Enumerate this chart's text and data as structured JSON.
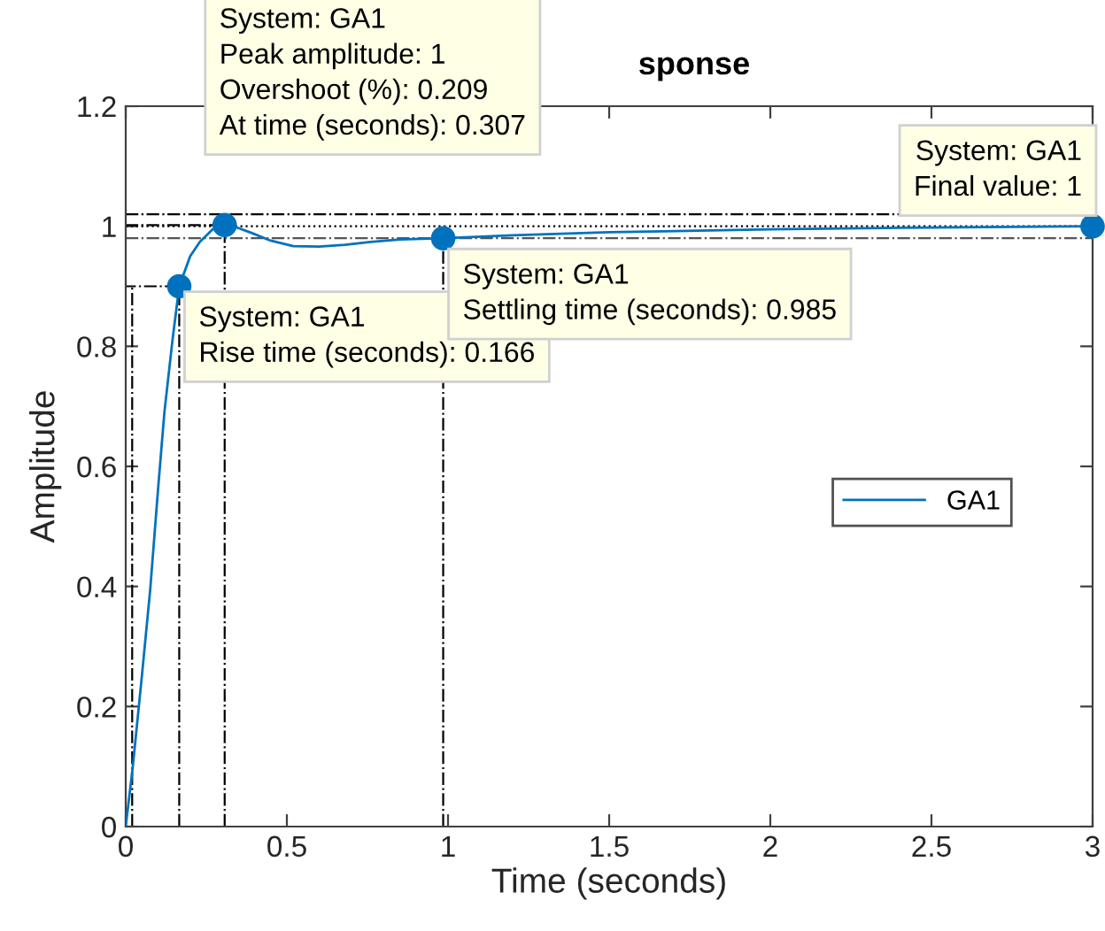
{
  "chart_data": {
    "type": "line",
    "title": "sponse",
    "xlabel": "Time (seconds)",
    "ylabel": "Amplitude",
    "xlim": [
      0,
      3
    ],
    "ylim": [
      0,
      1.2
    ],
    "xticks": [
      0,
      0.5,
      1,
      1.5,
      2,
      2.5,
      3
    ],
    "yticks": [
      0,
      0.2,
      0.4,
      0.6,
      0.8,
      1,
      1.2
    ],
    "grid": false,
    "legend": "right",
    "series": [
      {
        "name": "GA1",
        "color": "#0072bd",
        "x": [
          0,
          0.022,
          0.05,
          0.076,
          0.1,
          0.12,
          0.145,
          0.166,
          0.2,
          0.23,
          0.27,
          0.307,
          0.35,
          0.39,
          0.45,
          0.52,
          0.6,
          0.68,
          0.76,
          0.85,
          0.985,
          1.2,
          1.5,
          2,
          2.5,
          3
        ],
        "values": [
          0,
          0.1,
          0.25,
          0.395,
          0.56,
          0.69,
          0.81,
          0.9,
          0.95,
          0.974,
          0.995,
          1.002,
          0.997,
          0.989,
          0.976,
          0.967,
          0.966,
          0.969,
          0.974,
          0.978,
          0.98,
          0.985,
          0.99,
          0.995,
          0.998,
          1.0
        ]
      },
      {
        "color": "#0072bd",
        "type": "scatter",
        "marker": "circle",
        "x": [
          0.166,
          0.307,
          0.985,
          3
        ],
        "values": [
          0.9,
          1.002,
          0.98,
          1.0
        ]
      },
      {
        "color": "#000000",
        "line_style": "dashdot",
        "x": [
          0.02,
          0.02
        ],
        "values": [
          0,
          0.9
        ]
      },
      {
        "color": "#000000",
        "line_style": "dashdot",
        "x": [
          0.166,
          0.166,
          0
        ],
        "values": [
          0,
          0.9,
          0.9
        ]
      },
      {
        "color": "#000000",
        "line_style": "dashdot",
        "x": [
          0.307,
          0.307,
          0
        ],
        "values": [
          0,
          1.002,
          1.002
        ]
      },
      {
        "color": "#000000",
        "line_style": "dashdot",
        "x": [
          0.985,
          0.985
        ],
        "values": [
          0,
          0.98
        ]
      }
    ],
    "ref_lines": [
      {
        "axis": "y",
        "value": 1.02,
        "color": "#000000",
        "line_style": "dashdot"
      },
      {
        "axis": "y",
        "value": 0.98,
        "color": "#555555",
        "line_style": "dashdot"
      },
      {
        "axis": "y",
        "value": 1,
        "color": "#000000",
        "line_style": "dotted"
      }
    ],
    "annotations": [
      {
        "text": "System: GA1\nRise time (seconds): 0.166",
        "x": 0.166,
        "y": 0.9
      },
      {
        "text": "System: GA1\nPeak amplitude: 1\nOvershoot (%): 0.209\nAt time (seconds): 0.307",
        "x": 0.307,
        "y": 1.002
      },
      {
        "text": "System: GA1\nSettling time (seconds): 0.985",
        "x": 0.985,
        "y": 0.98
      },
      {
        "text": "System: GA1\nFinal value: 1",
        "x": 3,
        "y": 1.0
      }
    ]
  }
}
